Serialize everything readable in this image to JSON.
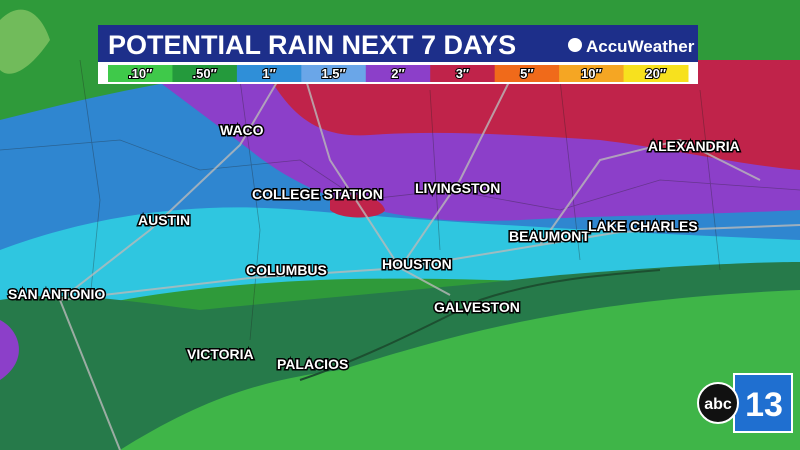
{
  "header": {
    "title": "POTENTIAL RAIN NEXT 7 DAYS",
    "brand": "AccuWeather"
  },
  "legend": [
    {
      "label": ".10″",
      "color": "#3fc94a"
    },
    {
      "label": ".50″",
      "color": "#249a3c"
    },
    {
      "label": "1″",
      "color": "#2f8fd8"
    },
    {
      "label": "1.5″",
      "color": "#6aa6e8"
    },
    {
      "label": "2″",
      "color": "#8c3fc9"
    },
    {
      "label": "3″",
      "color": "#c0234a"
    },
    {
      "label": "5″",
      "color": "#f06a1a"
    },
    {
      "label": "10″",
      "color": "#f5a623"
    },
    {
      "label": "20″",
      "color": "#f7e11e"
    }
  ],
  "cities": [
    "WACO",
    "COLLEGE STATION",
    "LIVINGSTON",
    "AUSTIN",
    "COLUMBUS",
    "HOUSTON",
    "BEAUMONT",
    "LAKE CHARLES",
    "ALEXANDRIA",
    "SAN ANTONIO",
    "GALVESTON",
    "VICTORIA",
    "PALACIOS"
  ],
  "logo": {
    "network": "abc",
    "channel": "13"
  }
}
